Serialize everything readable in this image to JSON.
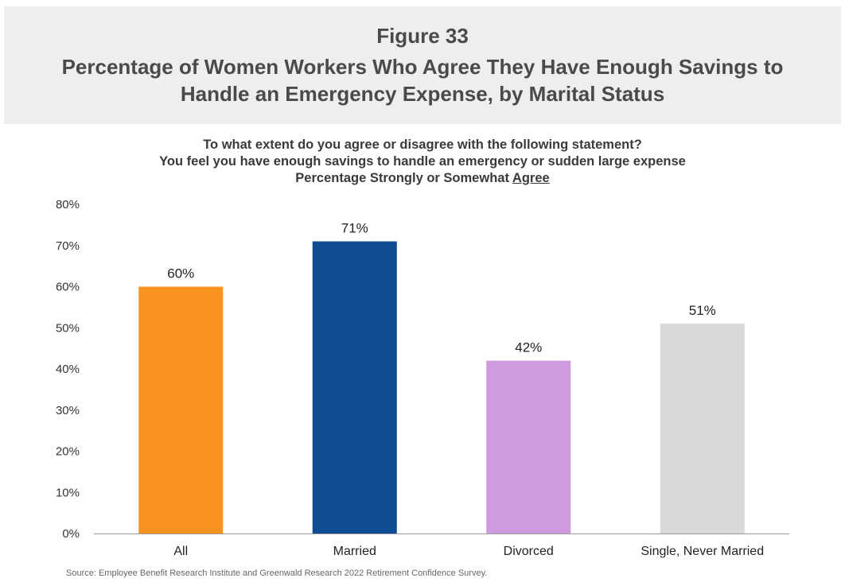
{
  "header": {
    "figure_number": "Figure 33",
    "title_line1": "Percentage of Women Workers Who Agree They Have Enough Savings to",
    "title_line2": "Handle an Emergency Expense, by Marital Status"
  },
  "subtitle": {
    "line1": "To what extent do you agree or disagree with the following statement?",
    "line2": "You feel you have enough savings to handle an emergency or sudden large expense",
    "line3_prefix": "Percentage Strongly or Somewhat ",
    "line3_underlined": "Agree"
  },
  "chart_data": {
    "type": "bar",
    "categories": [
      "All",
      "Married",
      "Divorced",
      "Single, Never Married"
    ],
    "values": [
      60,
      71,
      42,
      51
    ],
    "data_labels": [
      "60%",
      "71%",
      "42%",
      "51%"
    ],
    "colors": [
      "#f7931e",
      "#0f4c92",
      "#cf9ade",
      "#d9d9d9"
    ],
    "ylim": [
      0,
      80
    ],
    "yticks": [
      0,
      10,
      20,
      30,
      40,
      50,
      60,
      70,
      80
    ],
    "ytick_labels": [
      "0%",
      "10%",
      "20%",
      "30%",
      "40%",
      "50%",
      "60%",
      "70%",
      "80%"
    ],
    "xlabel": "",
    "ylabel": "",
    "grid": false,
    "legend": "none"
  },
  "source": "Source: Employee Benefit Research Institute and Greenwald Research 2022 Retirement Confidence Survey."
}
